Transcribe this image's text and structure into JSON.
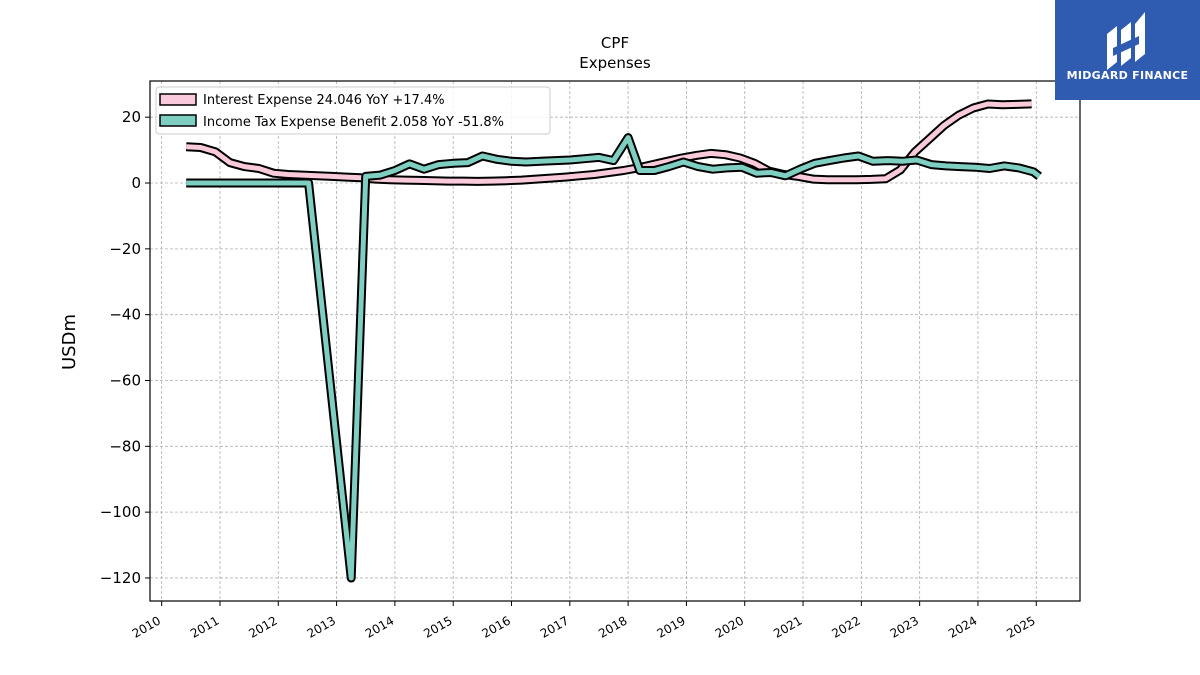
{
  "brand": {
    "name": "MIDGARD FINANCE",
    "color": "#2f5bb0",
    "icon": "midgard-m-logo-icon"
  },
  "chart_data": {
    "type": "line",
    "title": "CPF",
    "subtitle": "Expenses",
    "xlabel": "",
    "ylabel": "USDm",
    "xlim": [
      2009.8,
      2025.75
    ],
    "ylim": [
      -127,
      31
    ],
    "x_ticks": [
      "2010",
      "2011",
      "2012",
      "2013",
      "2014",
      "2015",
      "2016",
      "2017",
      "2018",
      "2019",
      "2020",
      "2021",
      "2022",
      "2023",
      "2024",
      "2025"
    ],
    "y_ticks": [
      20,
      0,
      -20,
      -40,
      -60,
      -80,
      -100,
      -120
    ],
    "y_tick_labels": [
      "20",
      "0",
      "−20",
      "−40",
      "−60",
      "−80",
      "−100",
      "−120"
    ],
    "grid": true,
    "legend_position": "top-left",
    "series": [
      {
        "name": "Interest Expense",
        "legend_label": "Interest Expense  24.046 YoY +17.4%",
        "color": "#f9c9dc",
        "points": [
          [
            2010.42,
            11.0
          ],
          [
            2010.67,
            10.8
          ],
          [
            2010.92,
            9.5
          ],
          [
            2011.17,
            6.2
          ],
          [
            2011.42,
            5.0
          ],
          [
            2011.67,
            4.4
          ],
          [
            2011.92,
            3.0
          ],
          [
            2012.17,
            2.6
          ],
          [
            2012.42,
            2.4
          ],
          [
            2012.67,
            2.2
          ],
          [
            2012.92,
            2.0
          ],
          [
            2013.17,
            1.8
          ],
          [
            2013.42,
            1.6
          ],
          [
            2013.67,
            1.2
          ],
          [
            2013.92,
            1.0
          ],
          [
            2014.17,
            0.9
          ],
          [
            2014.42,
            0.8
          ],
          [
            2014.67,
            0.7
          ],
          [
            2014.92,
            0.6
          ],
          [
            2015.17,
            0.6
          ],
          [
            2015.42,
            0.5
          ],
          [
            2015.67,
            0.6
          ],
          [
            2015.92,
            0.7
          ],
          [
            2016.17,
            0.9
          ],
          [
            2016.42,
            1.2
          ],
          [
            2016.67,
            1.5
          ],
          [
            2016.92,
            1.8
          ],
          [
            2017.17,
            2.2
          ],
          [
            2017.42,
            2.6
          ],
          [
            2017.67,
            3.2
          ],
          [
            2017.92,
            3.8
          ],
          [
            2018.17,
            4.6
          ],
          [
            2018.42,
            5.6
          ],
          [
            2018.67,
            6.6
          ],
          [
            2018.92,
            7.6
          ],
          [
            2019.17,
            8.4
          ],
          [
            2019.42,
            9.0
          ],
          [
            2019.67,
            8.6
          ],
          [
            2019.92,
            7.6
          ],
          [
            2020.17,
            6.0
          ],
          [
            2020.42,
            3.6
          ],
          [
            2020.67,
            2.6
          ],
          [
            2020.92,
            2.0
          ],
          [
            2021.17,
            1.2
          ],
          [
            2021.42,
            1.0
          ],
          [
            2021.67,
            1.0
          ],
          [
            2021.92,
            1.0
          ],
          [
            2022.17,
            1.1
          ],
          [
            2022.42,
            1.3
          ],
          [
            2022.67,
            4.0
          ],
          [
            2022.92,
            9.5
          ],
          [
            2023.17,
            13.5
          ],
          [
            2023.42,
            17.5
          ],
          [
            2023.67,
            20.6
          ],
          [
            2023.92,
            22.8
          ],
          [
            2024.17,
            24.0
          ],
          [
            2024.42,
            23.8
          ],
          [
            2024.67,
            23.9
          ],
          [
            2024.92,
            24.046
          ]
        ]
      },
      {
        "name": "Income Tax Expense Benefit",
        "legend_label": "Income Tax Expense Benefit  2.058 YoY -51.8%",
        "color": "#7ecec2",
        "points": [
          [
            2010.42,
            0
          ],
          [
            2010.67,
            0
          ],
          [
            2010.92,
            0
          ],
          [
            2011.17,
            0
          ],
          [
            2011.42,
            0
          ],
          [
            2011.67,
            0
          ],
          [
            2011.92,
            0
          ],
          [
            2012.17,
            0
          ],
          [
            2012.42,
            0
          ],
          [
            2012.52,
            0
          ],
          [
            2013.25,
            -120
          ],
          [
            2013.5,
            2.0
          ],
          [
            2013.75,
            2.4
          ],
          [
            2014.0,
            3.8
          ],
          [
            2014.25,
            5.8
          ],
          [
            2014.5,
            4.2
          ],
          [
            2014.75,
            5.6
          ],
          [
            2015.0,
            6.0
          ],
          [
            2015.25,
            6.2
          ],
          [
            2015.5,
            8.2
          ],
          [
            2015.75,
            7.2
          ],
          [
            2016.0,
            6.6
          ],
          [
            2016.25,
            6.4
          ],
          [
            2016.5,
            6.6
          ],
          [
            2016.75,
            6.8
          ],
          [
            2017.0,
            7.0
          ],
          [
            2017.25,
            7.4
          ],
          [
            2017.5,
            7.8
          ],
          [
            2017.75,
            6.8
          ],
          [
            2018.0,
            13.8
          ],
          [
            2018.2,
            3.8
          ],
          [
            2018.45,
            3.8
          ],
          [
            2018.7,
            5.0
          ],
          [
            2018.95,
            6.4
          ],
          [
            2019.2,
            5.0
          ],
          [
            2019.45,
            4.2
          ],
          [
            2019.7,
            4.6
          ],
          [
            2019.95,
            4.8
          ],
          [
            2020.2,
            3.0
          ],
          [
            2020.45,
            3.2
          ],
          [
            2020.7,
            2.2
          ],
          [
            2020.95,
            4.2
          ],
          [
            2021.2,
            6.0
          ],
          [
            2021.45,
            6.8
          ],
          [
            2021.7,
            7.6
          ],
          [
            2021.95,
            8.2
          ],
          [
            2022.2,
            6.6
          ],
          [
            2022.45,
            6.8
          ],
          [
            2022.7,
            6.6
          ],
          [
            2022.95,
            7.0
          ],
          [
            2023.2,
            5.6
          ],
          [
            2023.45,
            5.2
          ],
          [
            2023.7,
            5.0
          ],
          [
            2023.95,
            4.8
          ],
          [
            2024.2,
            4.4
          ],
          [
            2024.45,
            5.2
          ],
          [
            2024.7,
            4.6
          ],
          [
            2024.95,
            3.4
          ],
          [
            2025.05,
            2.058
          ]
        ]
      }
    ]
  }
}
